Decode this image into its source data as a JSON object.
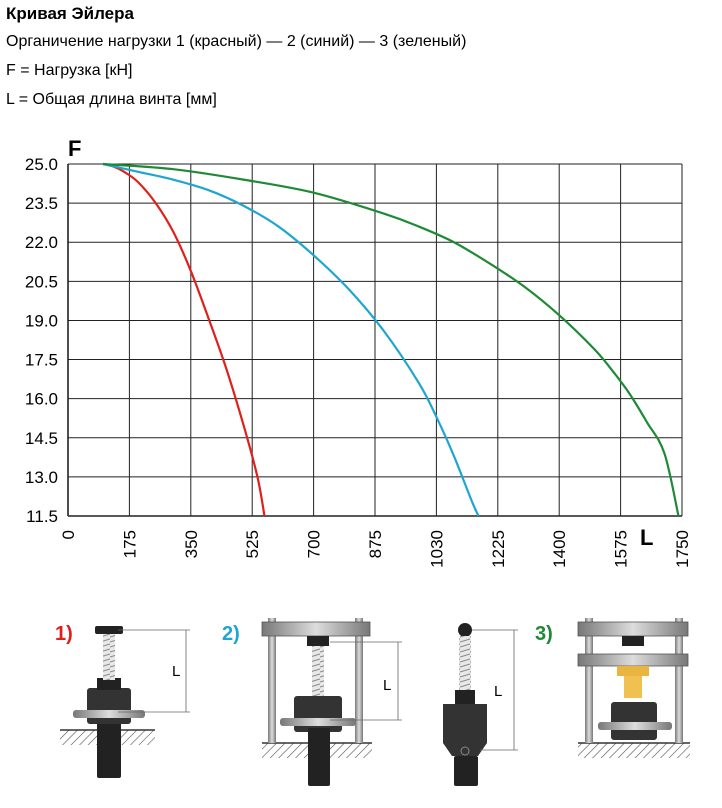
{
  "header": {
    "title": "Кривая Эйлера",
    "line1": "Органичение нагрузки 1 (красный) — 2 (синий) — 3 (зеленый)",
    "line2": "F = Нагрузка [кН]",
    "line3": "L = Общая длина винта [мм]"
  },
  "chart_data": {
    "type": "line",
    "ylabel": "F",
    "xlabel": "L",
    "xlim": [
      0,
      1750
    ],
    "ylim": [
      11.5,
      25.0
    ],
    "xticks": [
      "0",
      "175",
      "350",
      "525",
      "700",
      "875",
      "1030",
      "1225",
      "1400",
      "1575",
      "1750"
    ],
    "yticks": [
      "25.0",
      "23.5",
      "22.0",
      "20.5",
      "19.0",
      "17.5",
      "16.0",
      "14.5",
      "13.0",
      "11.5"
    ],
    "grid": true,
    "series": [
      {
        "name": "1",
        "color": "#e0201c",
        "x": [
          100,
          130,
          160,
          200,
          250,
          300,
          350,
          400,
          450,
          500,
          540,
          560
        ],
        "y": [
          25.0,
          24.9,
          24.7,
          24.3,
          23.5,
          22.4,
          20.9,
          19.1,
          17.2,
          15.0,
          13.0,
          11.5
        ]
      },
      {
        "name": "2",
        "color": "#1ea6d0",
        "x": [
          100,
          200,
          300,
          400,
          500,
          600,
          700,
          800,
          900,
          1000,
          1050,
          1100,
          1150,
          1170
        ],
        "y": [
          25.0,
          24.7,
          24.4,
          24.0,
          23.4,
          22.6,
          21.5,
          20.2,
          18.6,
          16.6,
          15.3,
          13.8,
          12.1,
          11.5
        ]
      },
      {
        "name": "3",
        "color": "#1e8a36",
        "x": [
          100,
          300,
          500,
          700,
          900,
          1000,
          1100,
          1200,
          1300,
          1400,
          1500,
          1550,
          1600,
          1650,
          1700,
          1740
        ],
        "y": [
          25.0,
          24.8,
          24.4,
          23.9,
          23.1,
          22.6,
          22.0,
          21.2,
          20.3,
          19.2,
          17.9,
          17.1,
          16.2,
          15.1,
          13.9,
          11.5
        ]
      }
    ]
  },
  "diagrams": {
    "labels": [
      "1)",
      "2)",
      "3)"
    ],
    "label_colors": [
      "#e0201c",
      "#1ea6d0",
      "#1e8a36"
    ],
    "length_label": "L"
  }
}
